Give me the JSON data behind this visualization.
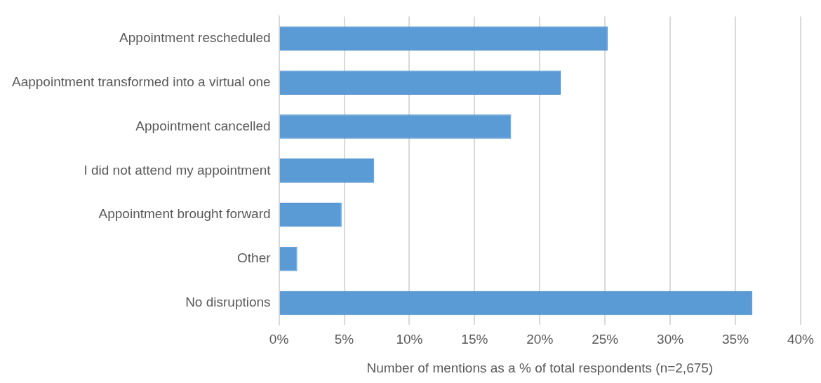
{
  "chart_data": {
    "type": "bar",
    "orientation": "horizontal",
    "categories": [
      "Appointment rescheduled",
      "Aappointment transformed into a virtual one",
      "Appointment cancelled",
      "I did not attend my appointment",
      "Appointment brought forward",
      "Other",
      "No disruptions"
    ],
    "values": [
      25.2,
      21.6,
      17.8,
      7.3,
      4.8,
      1.4,
      36.3
    ],
    "color": "#5b9bd5",
    "xlabel": "Number of mentions as a % of total respondents (n=2,675)",
    "xlim": [
      0,
      40
    ],
    "xticks": [
      {
        "value": 0,
        "label": "0%"
      },
      {
        "value": 5,
        "label": "5%"
      },
      {
        "value": 10,
        "label": "10%"
      },
      {
        "value": 15,
        "label": "15%"
      },
      {
        "value": 20,
        "label": "20%"
      },
      {
        "value": 25,
        "label": "25%"
      },
      {
        "value": 30,
        "label": "30%"
      },
      {
        "value": 35,
        "label": "35%"
      },
      {
        "value": 40,
        "label": "40%"
      }
    ],
    "grid": "x",
    "legend": false
  }
}
